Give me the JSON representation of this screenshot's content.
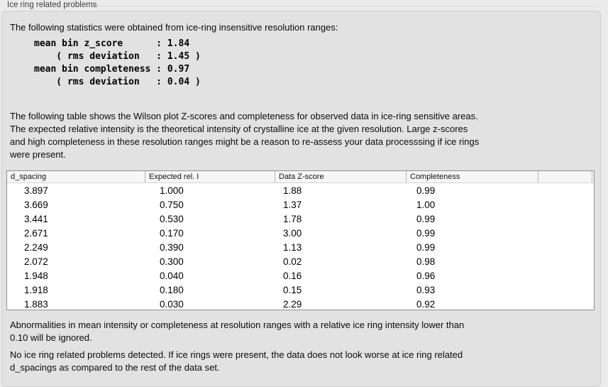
{
  "panel": {
    "title": "Ice ring related problems"
  },
  "sections": {
    "stats_intro": "The following statistics were obtained from ice-ring insensitive resolution ranges:",
    "stats_block": "mean bin z_score      : 1.84\n    ( rms deviation   : 1.45 )\nmean bin completeness : 0.97\n    ( rms deviation   : 0.04 )",
    "table_intro": "The following table shows the Wilson plot Z-scores and completeness for observed data in ice-ring sensitive areas.\nThe expected relative intensity is the theoretical intensity of crystalline ice at the given resolution. Large z-scores\nand high completeness in these resolution ranges might be a reason to re-assess your data processsing if ice rings\nwere present.",
    "ignore_note": "Abnormalities in mean intensity or completeness at resolution ranges with a relative ice ring intensity lower than\n0.10 will be ignored.",
    "conclusion": "No ice ring related problems detected. If ice rings were present, the data does not look worse at ice ring related\nd_spacings as compared to the rest of the data set."
  },
  "stats_values": {
    "mean_bin_z_score": "1.84",
    "z_score_rms_deviation": "1.45",
    "mean_bin_completeness": "0.97",
    "completeness_rms_deviation": "0.04"
  },
  "table": {
    "columns": [
      "d_spacing",
      "Expected rel. I",
      "Data Z-score",
      "Completeness",
      ""
    ],
    "rows": [
      [
        "3.897",
        "1.000",
        "1.88",
        "0.99"
      ],
      [
        "3.669",
        "0.750",
        "1.37",
        "1.00"
      ],
      [
        "3.441",
        "0.530",
        "1.78",
        "0.99"
      ],
      [
        "2.671",
        "0.170",
        "3.00",
        "0.99"
      ],
      [
        "2.249",
        "0.390",
        "1.13",
        "0.99"
      ],
      [
        "2.072",
        "0.300",
        "0.02",
        "0.98"
      ],
      [
        "1.948",
        "0.040",
        "0.16",
        "0.96"
      ],
      [
        "1.918",
        "0.180",
        "0.15",
        "0.93"
      ],
      [
        "1.883",
        "0.030",
        "2.29",
        "0.92"
      ]
    ]
  },
  "colors": {
    "page_bg": "#ebebeb",
    "panel_bg": "#e2e2e2",
    "table_header_bg": "#f6f6f6",
    "table_border": "#8f8f8f",
    "text": "#000000"
  }
}
